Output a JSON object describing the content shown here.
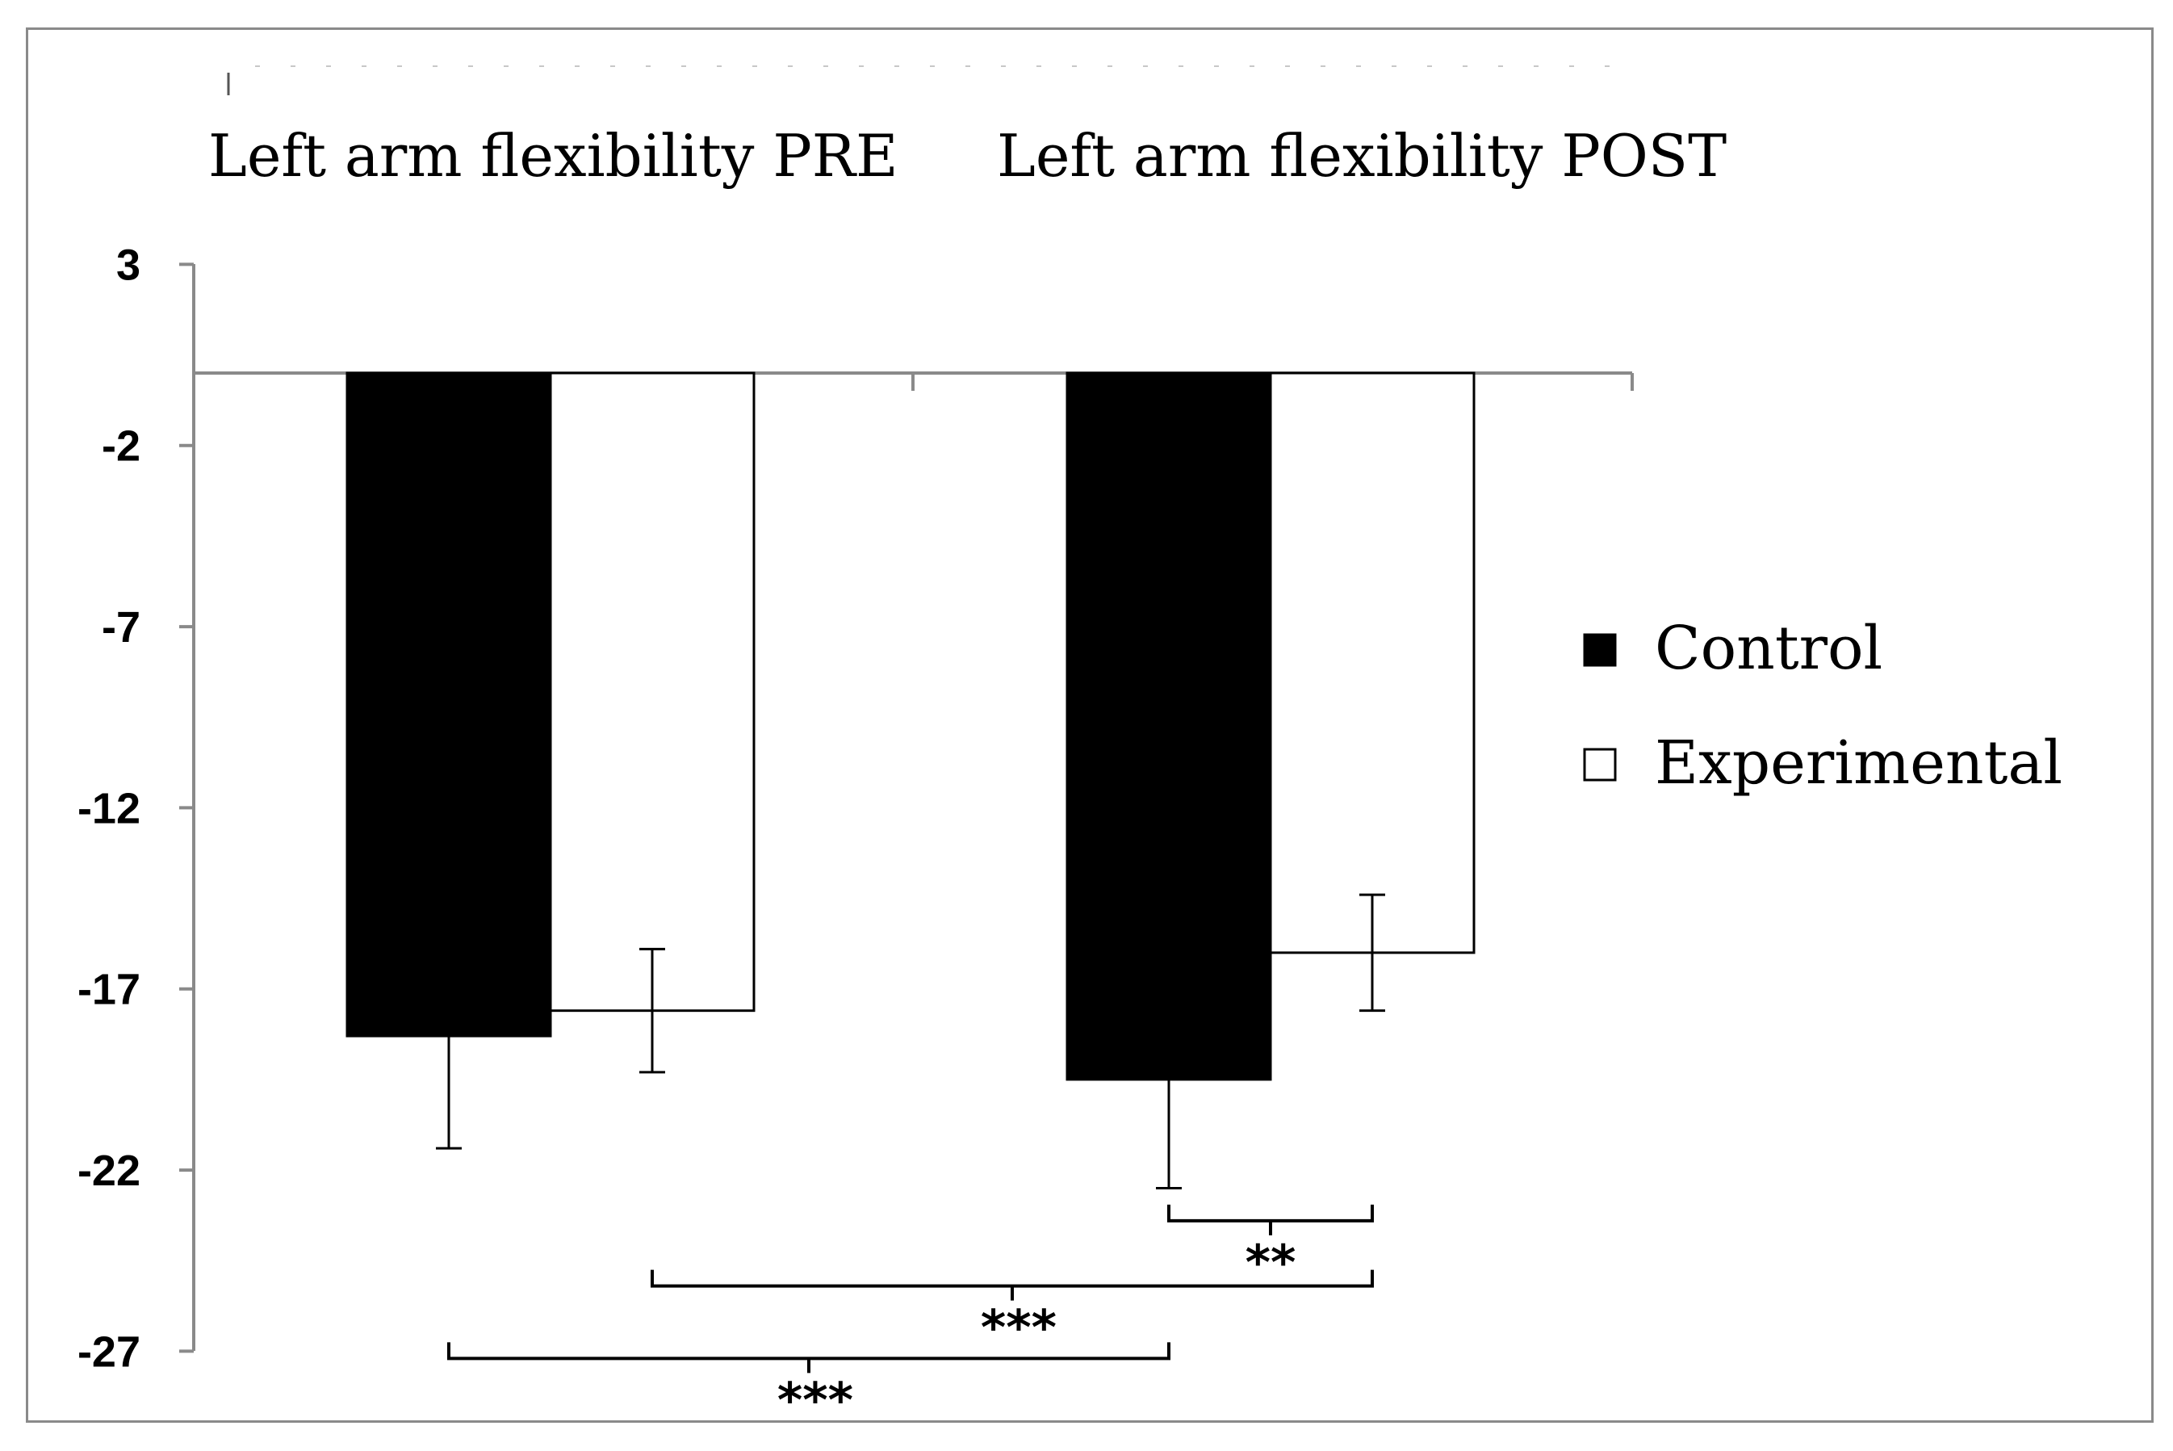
{
  "chart_data": {
    "type": "bar",
    "title": "",
    "xlabel": "",
    "ylabel": "",
    "categories": [
      "Left arm flexibility PRE",
      "Left arm flexibility POST"
    ],
    "series": [
      {
        "name": "Control",
        "color": "#000000",
        "values": [
          -18.3,
          -19.5
        ],
        "errors": [
          3.1,
          3.0
        ]
      },
      {
        "name": "Experimental",
        "color": "#ffffff",
        "values": [
          -17.6,
          -16.0
        ],
        "errors": [
          1.7,
          1.6
        ]
      }
    ],
    "ylim": [
      -27,
      3
    ],
    "yticks": [
      3,
      -2,
      -7,
      -12,
      -17,
      -22,
      -27
    ],
    "ytick_labels": [
      "3",
      "-2",
      "-7",
      "-12",
      "-17",
      "-22",
      "-27"
    ],
    "legend_position": "right",
    "grid": false,
    "significance": [
      {
        "label": "**",
        "from": {
          "series": 0,
          "category": 1
        },
        "to": {
          "series": 1,
          "category": 1
        },
        "level": -23.4
      },
      {
        "label": "***",
        "from": {
          "series": 1,
          "category": 0
        },
        "to": {
          "series": 1,
          "category": 1
        },
        "level": -25.2
      },
      {
        "label": "***",
        "from": {
          "series": 0,
          "category": 0
        },
        "to": {
          "series": 0,
          "category": 1
        },
        "level": -27.2
      }
    ]
  }
}
